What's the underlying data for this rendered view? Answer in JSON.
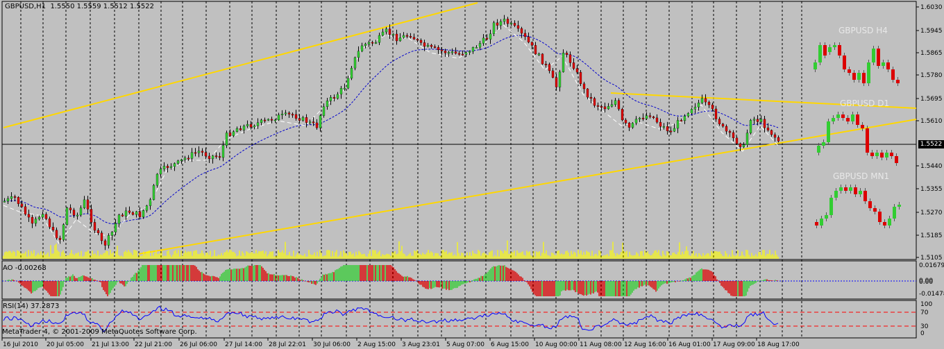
{
  "window": {
    "title": "GBPUSD,H1",
    "ohlc": "1.5550 1.5559 1.5512 1.5522"
  },
  "current_price": "1.5522",
  "colors": {
    "background": "#c0c0c0",
    "bull": "#32cd32",
    "bear": "#dc0000",
    "volume": "#ffff00",
    "trendline": "#ffd700",
    "ma": "#0000cc",
    "rsi_line": "#0000ff",
    "rsi_levels": "#ff0000",
    "grid": "#000000"
  },
  "main_price_axis": [
    "1.6030",
    "1.5945",
    "1.5865",
    "1.5780",
    "1.5695",
    "1.5610",
    "1.5440",
    "1.5355",
    "1.5270",
    "1.5185",
    "1.5105"
  ],
  "time_axis": [
    "16 Jul 2010",
    "20 Jul 05:00",
    "21 Jul 13:00",
    "22 Jul 21:00",
    "26 Jul 06:00",
    "27 Jul 14:00",
    "28 Jul 22:01",
    "30 Jul 06:00",
    "2 Aug 15:00",
    "3 Aug 23:01",
    "5 Aug 07:00",
    "6 Aug 15:00",
    "10 Aug 00:00",
    "11 Aug 08:00",
    "12 Aug 16:00",
    "16 Aug 01:00",
    "17 Aug 09:00",
    "18 Aug 17:00"
  ],
  "ao": {
    "label": "AO -0.00268",
    "axis": [
      "0.01679",
      "0.00",
      "0.00",
      "-0.01478"
    ]
  },
  "rsi": {
    "label": "RSI(14) 37.2873",
    "axis": [
      "100",
      "70",
      "30",
      "0"
    ]
  },
  "mini_charts": [
    {
      "label": "GBPUSD H4"
    },
    {
      "label": "GBPUSD D1"
    },
    {
      "label": "GBPUSD MN1"
    }
  ],
  "copyright": "MetaTrader 4, © 2001-2009 MetaQuotes Software Corp."
}
